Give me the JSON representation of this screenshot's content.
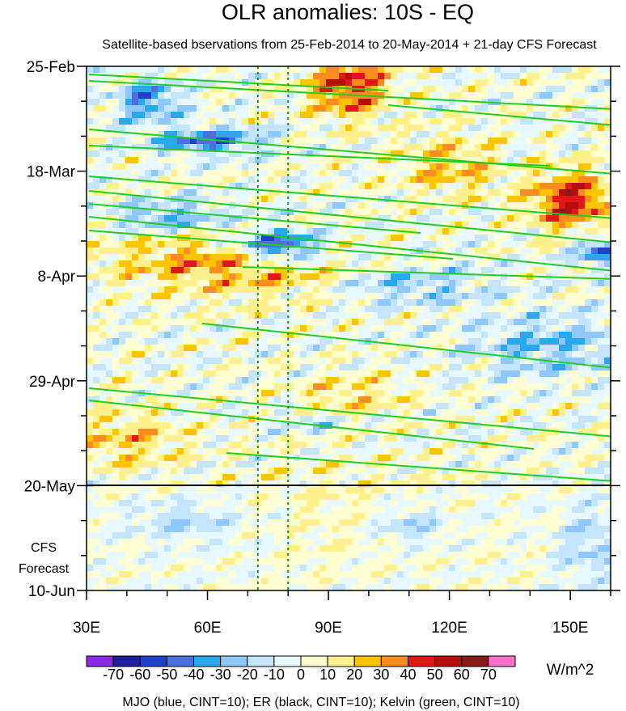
{
  "chart_data": {
    "type": "heatmap",
    "title": "OLR anomalies: 10S - EQ",
    "subtitle": "Satellite-based bservations from 25-Feb-2014 to 20-May-2014 + 21-day CFS Forecast",
    "x_ticks": [
      {
        "value": 30,
        "label": "30E"
      },
      {
        "value": 60,
        "label": "60E"
      },
      {
        "value": 90,
        "label": "90E"
      },
      {
        "value": 120,
        "label": "120E"
      },
      {
        "value": 150,
        "label": "150E"
      }
    ],
    "xlim": [
      30,
      160
    ],
    "y_ticks": [
      {
        "day": 0,
        "label": "25-Feb"
      },
      {
        "day": 21,
        "label": "18-Mar"
      },
      {
        "day": 42,
        "label": "8-Apr"
      },
      {
        "day": 63,
        "label": "29-Apr"
      },
      {
        "day": 84,
        "label": "20-May"
      },
      {
        "day": 105,
        "label": "10-Jun"
      }
    ],
    "forecast_label_line1": "CFS",
    "forecast_label_line2": "Forecast",
    "forecast_boundary_label": "20-May",
    "reference_meridians": [
      72.5,
      80
    ],
    "colorbar": {
      "levels": [
        "-70",
        "-60",
        "-50",
        "-40",
        "-30",
        "-20",
        "-10",
        "0",
        "10",
        "20",
        "30",
        "40",
        "50",
        "60",
        "70"
      ],
      "colors": [
        "#8a2be2",
        "#1e1ea0",
        "#2040c8",
        "#4f6fe0",
        "#2aa8ee",
        "#8ec8ff",
        "#c4e4ff",
        "#e8f8ff",
        "#ffffd2",
        "#fff08c",
        "#ffc400",
        "#ff8c1e",
        "#e11616",
        "#b80d0d",
        "#8c1a1a",
        "#ff6ec8"
      ],
      "units": "W/m^2"
    },
    "footer_note": "MJO (blue, CINT=10); ER (black, CINT=10); Kelvin (green, CINT=10)",
    "contour_colors": {
      "mjo": "#1a1acc",
      "er": "#000000",
      "kelvin": "#22cc22",
      "meridian": "#1f8f1f"
    }
  }
}
